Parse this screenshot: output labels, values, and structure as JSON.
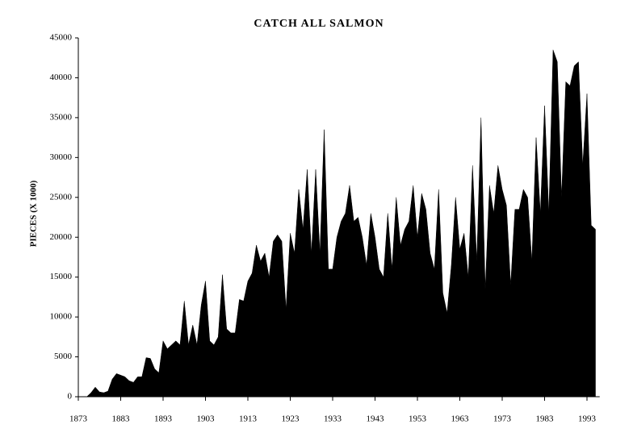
{
  "chart_data": {
    "type": "area",
    "title": "CATCH ALL SALMON",
    "y_label": "PIECES (X 1000)",
    "color": "#000000",
    "x": [
      1873,
      1874,
      1875,
      1876,
      1877,
      1878,
      1879,
      1880,
      1881,
      1882,
      1883,
      1884,
      1885,
      1886,
      1887,
      1888,
      1889,
      1890,
      1891,
      1892,
      1893,
      1894,
      1895,
      1896,
      1897,
      1898,
      1899,
      1900,
      1901,
      1902,
      1903,
      1904,
      1905,
      1906,
      1907,
      1908,
      1909,
      1910,
      1911,
      1912,
      1913,
      1914,
      1915,
      1916,
      1917,
      1918,
      1919,
      1920,
      1921,
      1922,
      1923,
      1924,
      1925,
      1926,
      1927,
      1928,
      1929,
      1930,
      1931,
      1932,
      1933,
      1934,
      1935,
      1936,
      1937,
      1938,
      1939,
      1940,
      1941,
      1942,
      1943,
      1944,
      1945,
      1946,
      1947,
      1948,
      1949,
      1950,
      1951,
      1952,
      1953,
      1954,
      1955,
      1956,
      1957,
      1958,
      1959,
      1960,
      1961,
      1962,
      1963,
      1964,
      1965,
      1966,
      1967,
      1968,
      1969,
      1970,
      1971,
      1972,
      1973,
      1974,
      1975,
      1976,
      1977,
      1978,
      1979,
      1980,
      1981,
      1982,
      1983,
      1984,
      1985,
      1986,
      1987,
      1988,
      1989,
      1990,
      1991,
      1992,
      1993,
      1994,
      1995
    ],
    "values": [
      0,
      0,
      0,
      500,
      1200,
      600,
      500,
      700,
      2200,
      2900,
      2700,
      2500,
      2000,
      1800,
      2500,
      2500,
      4900,
      4800,
      3500,
      3000,
      7000,
      6000,
      6500,
      7000,
      6500,
      12000,
      6500,
      9000,
      6500,
      11500,
      14500,
      7000,
      6500,
      7500,
      15300,
      8500,
      8000,
      8000,
      12200,
      12000,
      14500,
      15500,
      19000,
      17000,
      18000,
      15000,
      19500,
      20300,
      19500,
      11000,
      20500,
      18000,
      26000,
      21000,
      28500,
      18000,
      28500,
      18000,
      33500,
      16000,
      16000,
      20000,
      22000,
      23000,
      26500,
      22000,
      22500,
      20000,
      16500,
      23000,
      20000,
      16000,
      15000,
      23000,
      16000,
      25000,
      19000,
      21000,
      22000,
      26500,
      20000,
      25500,
      23500,
      18000,
      16000,
      26000,
      13000,
      10500,
      16500,
      25000,
      18500,
      20500,
      15000,
      29000,
      17000,
      35000,
      13500,
      26500,
      23000,
      29000,
      26000,
      24000,
      14000,
      23500,
      23500,
      26000,
      25000,
      17000,
      32500,
      23000,
      36500,
      23000,
      43500,
      42000,
      25000,
      39500,
      39000,
      41500,
      42000,
      29000,
      38000,
      21500,
      21000
    ],
    "xlim": [
      1873,
      1996
    ],
    "xticks": [
      1873,
      1883,
      1893,
      1903,
      1913,
      1923,
      1933,
      1943,
      1953,
      1963,
      1973,
      1983,
      1993
    ],
    "ylim": [
      0,
      45000
    ],
    "yticks": [
      0,
      5000,
      10000,
      15000,
      20000,
      25000,
      30000,
      35000,
      40000,
      45000
    ]
  }
}
